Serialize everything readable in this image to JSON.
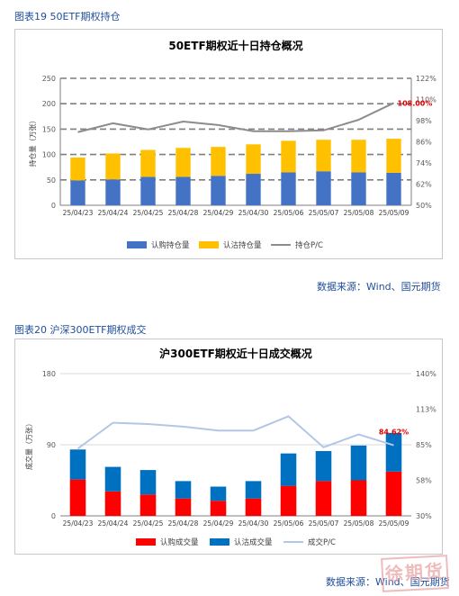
{
  "figure1": {
    "caption": "图表19 50ETF期权持仓",
    "source": "数据来源：Wind、国元期货",
    "chart_data": {
      "type": "bar",
      "stacked": true,
      "title": "50ETF期权近十日持仓概况",
      "ylabel": "持仓量（万张）",
      "categories": [
        "25/04/23",
        "25/04/24",
        "25/04/25",
        "25/04/28",
        "25/04/29",
        "25/04/30",
        "25/05/06",
        "25/05/07",
        "25/05/08",
        "25/05/09"
      ],
      "ylim": [
        0,
        250
      ],
      "yticks": [
        0,
        50,
        100,
        150,
        200,
        250
      ],
      "y2lim": [
        50,
        122
      ],
      "y2ticks": [
        "50%",
        "62%",
        "74%",
        "86%",
        "98%",
        "110%",
        "122%"
      ],
      "series": [
        {
          "name": "认购持仓量",
          "kind": "bar",
          "color": "#4472c4",
          "values": [
            49,
            51,
            56,
            56,
            58,
            62,
            65,
            67,
            65,
            64
          ]
        },
        {
          "name": "认沽持仓量",
          "kind": "bar",
          "color": "#ffc000",
          "values": [
            45,
            51,
            53,
            57,
            57,
            58,
            62,
            62,
            64,
            67
          ]
        },
        {
          "name": "持仓P/C",
          "kind": "line",
          "axis": "right",
          "color": "#8c8c8c",
          "values": [
            91.5,
            96.5,
            93,
            97.5,
            95.5,
            92,
            92,
            92.5,
            98.5,
            108
          ]
        }
      ],
      "annotation": "108.00%",
      "grid": true,
      "legend": "bottom"
    }
  },
  "figure2": {
    "caption": "图表20 沪深300ETF期权成交",
    "source": "数据来源：Wind、国元期货",
    "chart_data": {
      "type": "bar",
      "stacked": true,
      "title": "沪300ETF期权近十日成交概况",
      "ylabel": "成交量（万张）",
      "categories": [
        "25/04/23",
        "25/04/24",
        "25/04/25",
        "25/04/28",
        "25/04/29",
        "25/04/30",
        "25/05/06",
        "25/05/07",
        "25/05/08",
        "25/05/09"
      ],
      "ylim": [
        0,
        180
      ],
      "yticks": [
        0,
        90,
        180
      ],
      "y2lim": [
        30,
        140
      ],
      "y2ticks": [
        "30%",
        "58%",
        "85%",
        "113%",
        "140%"
      ],
      "series": [
        {
          "name": "认购成交量",
          "kind": "bar",
          "color": "#ff0000",
          "values": [
            46,
            31,
            27,
            22,
            19,
            22,
            38,
            44,
            45,
            56
          ]
        },
        {
          "name": "认沽成交量",
          "kind": "bar",
          "color": "#0070c0",
          "values": [
            38,
            31,
            31,
            22,
            18,
            22,
            41,
            38,
            44,
            49
          ]
        },
        {
          "name": "成交P/C",
          "kind": "line",
          "axis": "right",
          "color": "#b4c6e7",
          "values": [
            82,
            102,
            101,
            99,
            96,
            96,
            107,
            83,
            93,
            84.62
          ]
        }
      ],
      "annotation": "84.62%",
      "grid": true,
      "legend": "bottom"
    }
  },
  "watermark": "徐期货"
}
